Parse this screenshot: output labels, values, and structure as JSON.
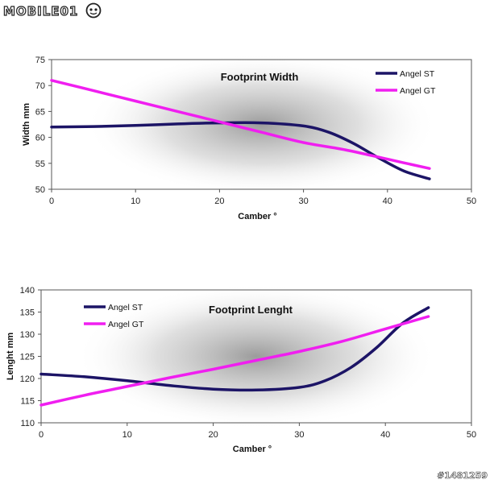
{
  "logo": {
    "text": "MOBILE01"
  },
  "watermark": "#1481259",
  "chart_data": [
    {
      "type": "line",
      "title": "Footprint Width",
      "xlabel": "Camber °",
      "ylabel": "Width mm",
      "xlim": [
        0,
        50
      ],
      "ylim": [
        50,
        75
      ],
      "xticks": [
        0,
        10,
        20,
        30,
        40,
        50
      ],
      "yticks": [
        50,
        55,
        60,
        65,
        70,
        75
      ],
      "legend_position": "top-right",
      "series": [
        {
          "name": "Angel ST",
          "color": "#1c1466",
          "x": [
            0,
            5,
            10,
            15,
            20,
            25,
            30,
            33,
            36,
            39,
            42,
            45
          ],
          "y": [
            62,
            62.1,
            62.3,
            62.6,
            62.8,
            62.8,
            62.2,
            61,
            58.8,
            56,
            53.5,
            52
          ]
        },
        {
          "name": "Angel GT",
          "color": "#f01ef0",
          "x": [
            0,
            5,
            10,
            15,
            20,
            25,
            30,
            35,
            40,
            45
          ],
          "y": [
            71,
            69,
            67,
            65,
            63,
            61,
            59,
            57.6,
            55.8,
            54
          ]
        }
      ]
    },
    {
      "type": "line",
      "title": "Footprint Lenght",
      "xlabel": "Camber °",
      "ylabel": "Lenght mm",
      "xlim": [
        0,
        50
      ],
      "ylim": [
        110,
        140
      ],
      "xticks": [
        0,
        10,
        20,
        30,
        40,
        50
      ],
      "yticks": [
        110,
        115,
        120,
        125,
        130,
        135,
        140
      ],
      "legend_position": "top-left",
      "series": [
        {
          "name": "Angel ST",
          "color": "#1c1466",
          "x": [
            0,
            5,
            10,
            15,
            20,
            25,
            30,
            33,
            36,
            39,
            42,
            45
          ],
          "y": [
            121,
            120.4,
            119.5,
            118.4,
            117.6,
            117.4,
            118,
            119.5,
            122.5,
            127,
            132.5,
            136
          ]
        },
        {
          "name": "Angel GT",
          "color": "#f01ef0",
          "x": [
            0,
            5,
            10,
            15,
            20,
            25,
            30,
            35,
            40,
            45
          ],
          "y": [
            114,
            116.2,
            118.2,
            120.2,
            122.1,
            124.1,
            126.1,
            128.4,
            131.2,
            134
          ]
        }
      ]
    }
  ]
}
